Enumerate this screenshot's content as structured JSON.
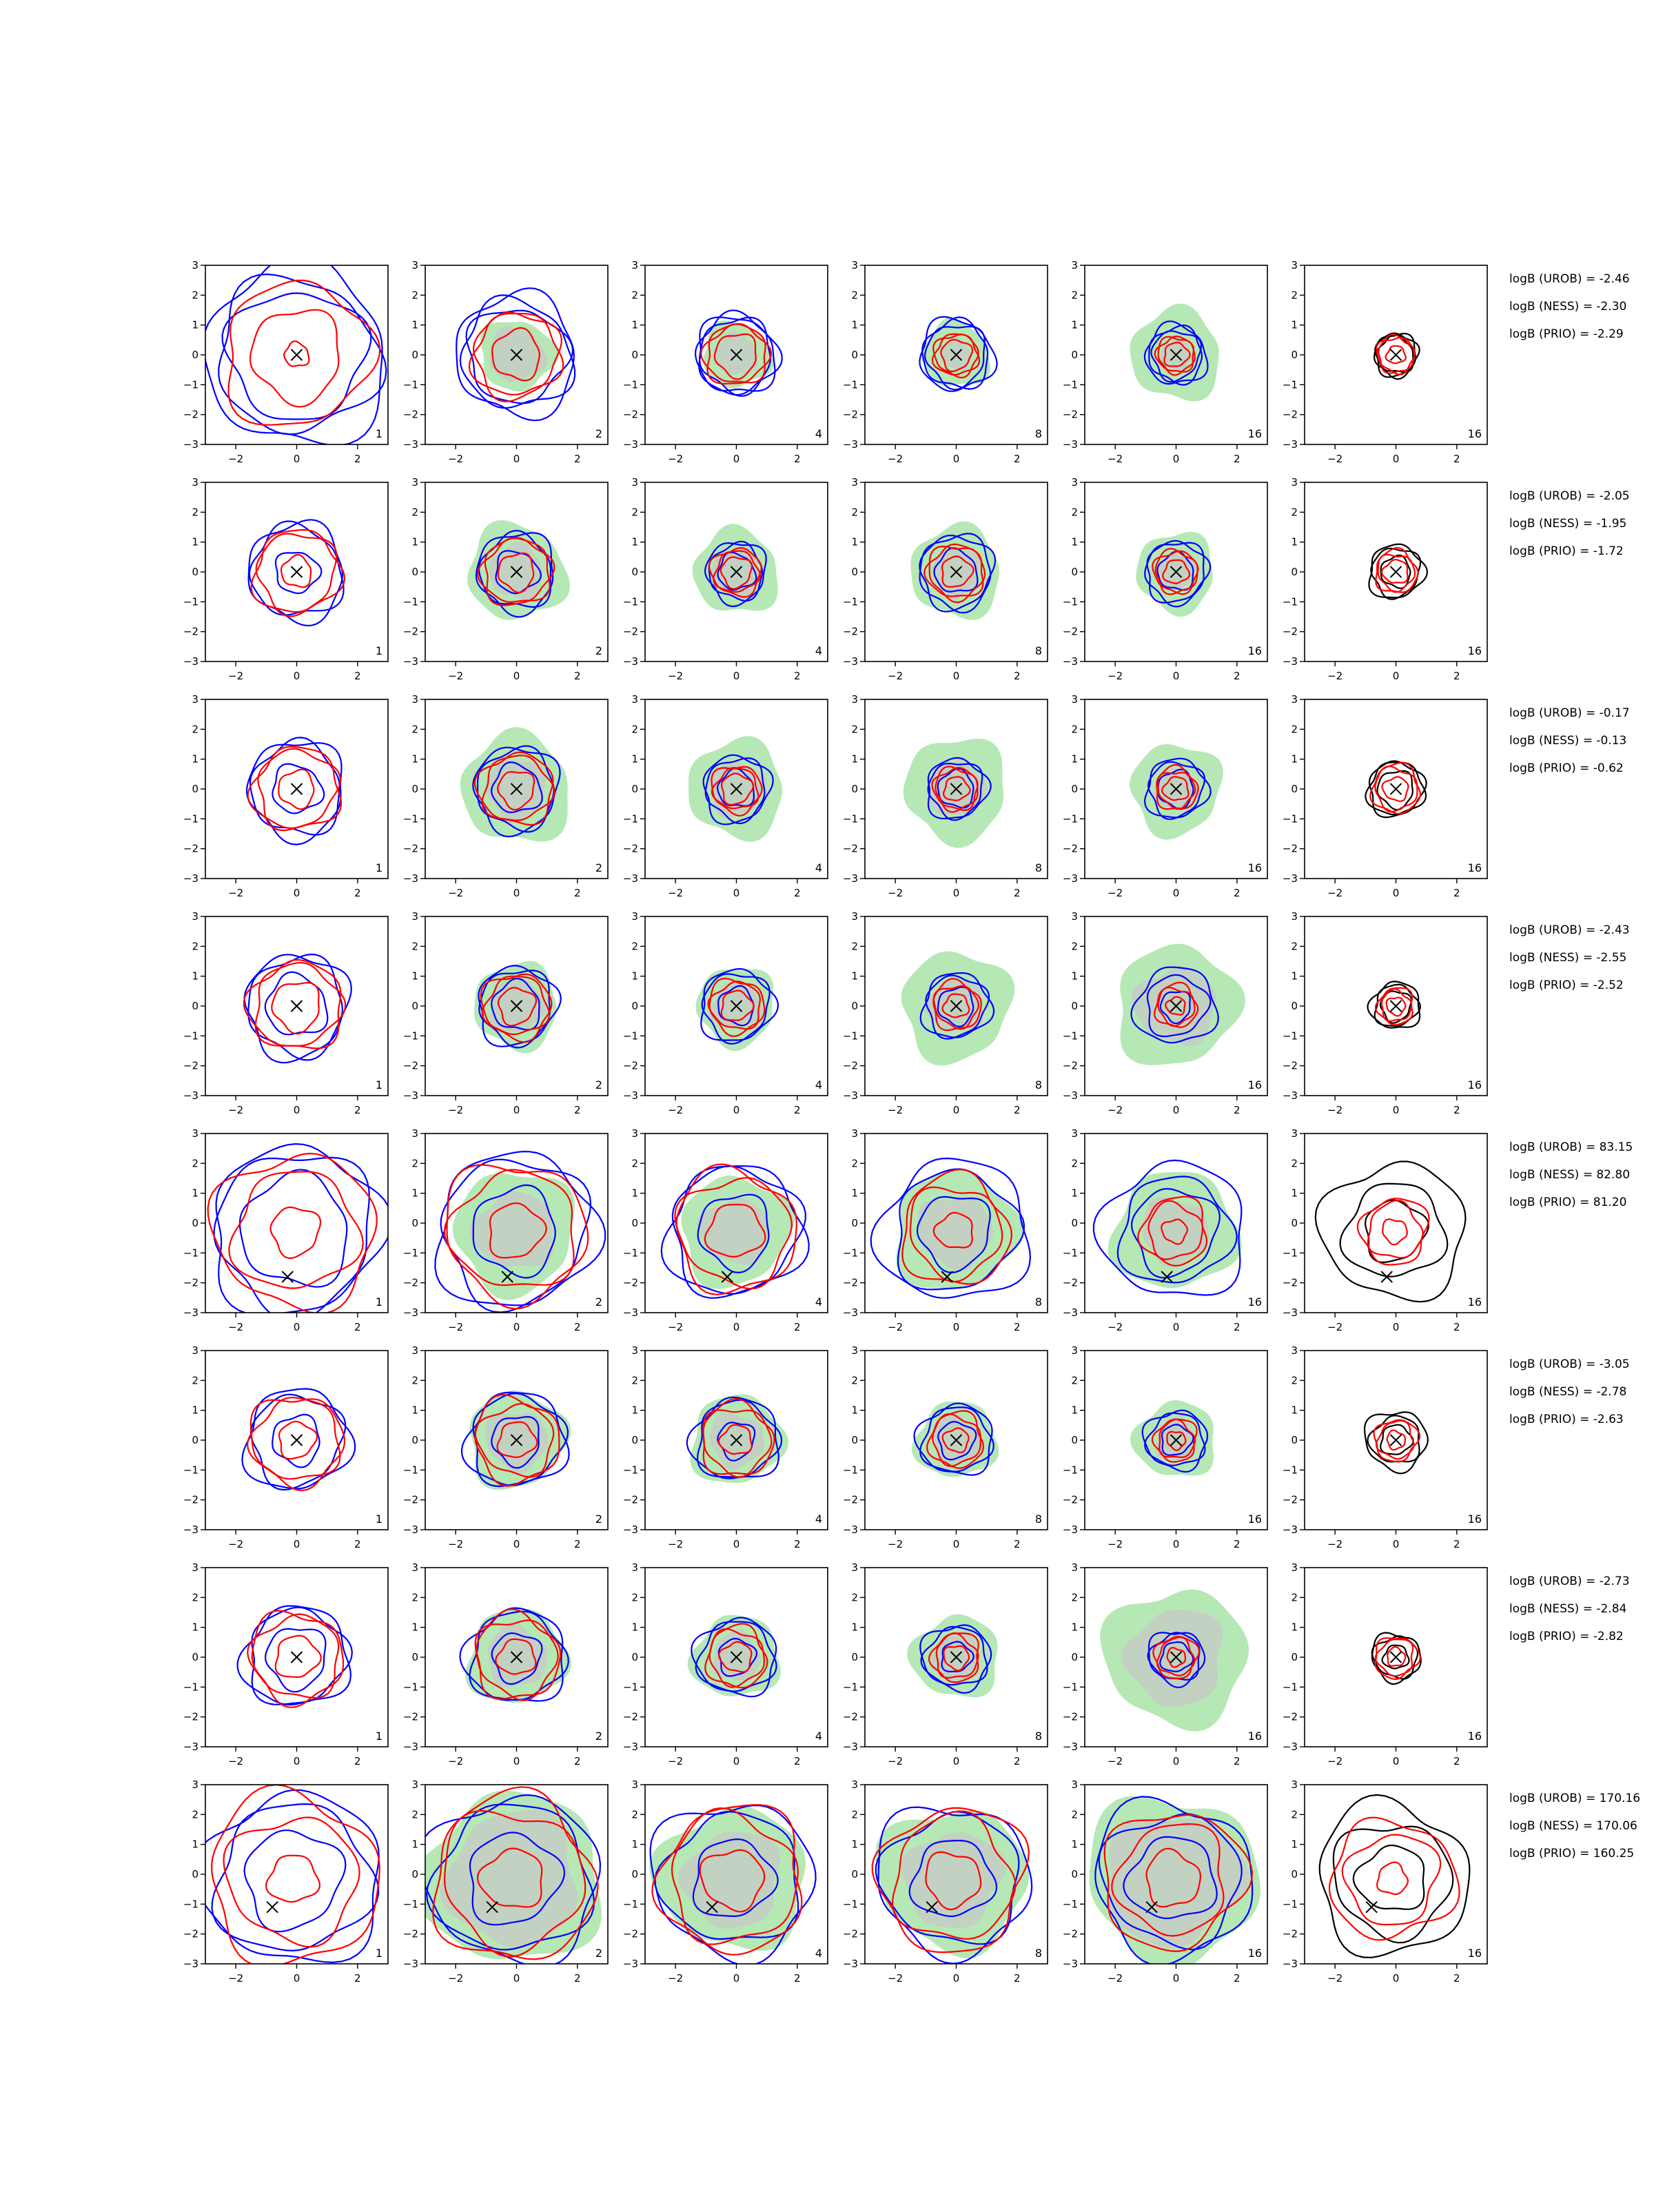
{
  "chart_data": {
    "type": "contour-grid",
    "rows": 8,
    "cols": 6,
    "xlim": [
      -3,
      3
    ],
    "ylim": [
      -3,
      3
    ],
    "xticks": [
      "−2",
      "0",
      "2"
    ],
    "yticks": [
      "−3",
      "−2",
      "−1",
      "0",
      "1",
      "2",
      "3"
    ],
    "column_counts": [
      "1",
      "2",
      "4",
      "8",
      "16",
      "16"
    ],
    "colors": {
      "blue": "#0000ff",
      "red": "#ff0000",
      "black": "#000000",
      "green": "#b5e8b5",
      "grey": "#c8c8c8"
    },
    "rows_data": [
      {
        "marker": [
          0,
          0
        ],
        "logB": [
          "logB (UROB) = -2.46",
          "logB (NESS) = -2.30",
          "logB (PRIO) = -2.29"
        ],
        "blue": [
          [
            2.2,
            2.6,
            3.0
          ],
          [
            1.6,
            1.8,
            2.0
          ],
          [
            1.3,
            1.3,
            1.2
          ],
          [
            1.2,
            1.1,
            1.0
          ],
          [
            1.0,
            0.9,
            0.8
          ],
          [
            0.6,
            0.7,
            0.7
          ]
        ],
        "red": [
          [
            0.4,
            1.5,
            2.4
          ],
          [
            0.8,
            1.4,
            1.4
          ],
          [
            0.7,
            1.0,
            1.0
          ],
          [
            0.5,
            0.7,
            0.7
          ],
          [
            0.4,
            0.6,
            0.6
          ],
          [
            0.3,
            0.6,
            0.6
          ]
        ],
        "green": [
          0,
          1.2,
          1.1,
          1.1,
          1.5,
          0
        ],
        "grey": [
          0,
          0.9,
          0.7,
          0.5,
          0.5,
          0
        ]
      },
      {
        "marker": [
          0,
          0
        ],
        "logB": [
          "logB (UROB) = -2.05",
          "logB (NESS) = -1.95",
          "logB (PRIO) = -1.72"
        ],
        "blue": [
          [
            0.7,
            1.5,
            1.6
          ],
          [
            0.7,
            1.2,
            1.3
          ],
          [
            0.6,
            0.9,
            1.0
          ],
          [
            0.7,
            1.2,
            1.2
          ],
          [
            0.6,
            1.0,
            1.0
          ],
          [
            0.5,
            0.8,
            0.9
          ]
        ],
        "red": [
          [
            0.5,
            1.3,
            1.4
          ],
          [
            0.6,
            1.1,
            1.1
          ],
          [
            0.5,
            0.7,
            0.8
          ],
          [
            0.5,
            0.9,
            0.9
          ],
          [
            0.4,
            0.7,
            0.7
          ],
          [
            0.4,
            0.6,
            0.7
          ]
        ],
        "green": [
          0,
          1.6,
          1.4,
          1.5,
          1.3,
          0
        ],
        "grey": [
          0,
          0.9,
          0.8,
          0.8,
          0.6,
          0
        ]
      },
      {
        "marker": [
          0,
          0
        ],
        "logB": [
          "logB (UROB) = -0.17",
          "logB (NESS) = -0.13",
          "logB (PRIO) = -0.62"
        ],
        "blue": [
          [
            0.8,
            1.5,
            1.6
          ],
          [
            0.8,
            1.3,
            1.4
          ],
          [
            0.6,
            1.0,
            1.1
          ],
          [
            0.6,
            0.9,
            1.0
          ],
          [
            0.6,
            0.9,
            1.0
          ],
          [
            0.6,
            0.9,
            0.9
          ]
        ],
        "red": [
          [
            0.6,
            1.3,
            1.4
          ],
          [
            0.6,
            1.1,
            1.2
          ],
          [
            0.5,
            0.7,
            0.8
          ],
          [
            0.4,
            0.7,
            0.7
          ],
          [
            0.4,
            0.6,
            0.7
          ],
          [
            0.4,
            0.7,
            0.8
          ]
        ],
        "green": [
          0,
          1.8,
          1.6,
          1.7,
          1.5,
          0
        ],
        "grey": [
          0,
          1.0,
          0.9,
          0.9,
          0.7,
          0
        ]
      },
      {
        "marker": [
          0,
          0
        ],
        "logB": [
          "logB (UROB) = -2.43",
          "logB (NESS) = -2.55",
          "logB (PRIO) = -2.52"
        ],
        "blue": [
          [
            1.0,
            1.6,
            1.7
          ],
          [
            0.8,
            1.2,
            1.3
          ],
          [
            0.6,
            1.1,
            1.2
          ],
          [
            0.6,
            1.0,
            1.1
          ],
          [
            0.5,
            1.0,
            1.3
          ],
          [
            0.5,
            0.7,
            0.8
          ]
        ],
        "red": [
          [
            0.8,
            1.4,
            1.5
          ],
          [
            0.6,
            1.0,
            1.1
          ],
          [
            0.5,
            0.8,
            0.9
          ],
          [
            0.4,
            0.7,
            0.8
          ],
          [
            0.3,
            0.6,
            0.7
          ],
          [
            0.3,
            0.5,
            0.6
          ]
        ],
        "green": [
          0,
          1.4,
          1.3,
          1.8,
          2.0,
          0
        ],
        "grey": [
          0,
          0.9,
          0.8,
          0.9,
          1.3,
          0
        ]
      },
      {
        "marker": [
          -0.3,
          -1.8
        ],
        "logB": [
          "logB (UROB) = 83.15",
          "logB (NESS) = 82.80",
          "logB (PRIO) = 81.20"
        ],
        "blue": [
          [
            1.8,
            2.6,
            2.8
          ],
          [
            1.4,
            2.4,
            2.6
          ],
          [
            1.2,
            2.1,
            2.2
          ],
          [
            1.2,
            2.0,
            2.4
          ],
          [
            1.4,
            1.8,
            2.3
          ],
          [
            1.0,
            1.6,
            2.3
          ]
        ],
        "red": [
          [
            0.8,
            2.0,
            2.6
          ],
          [
            0.9,
            2.0,
            2.3
          ],
          [
            0.9,
            1.8,
            2.0
          ],
          [
            0.6,
            1.5,
            1.8
          ],
          [
            0.4,
            0.9,
            1.1
          ],
          [
            0.4,
            0.9,
            1.1
          ]
        ],
        "green": [
          0,
          2.0,
          1.8,
          2.0,
          2.0,
          0
        ],
        "grey": [
          0,
          1.3,
          1.1,
          1.2,
          1.1,
          0
        ]
      },
      {
        "marker": [
          0,
          0
        ],
        "logB": [
          "logB (UROB) = -3.05",
          "logB (NESS) = -2.78",
          "logB (PRIO) = -2.63"
        ],
        "blue": [
          [
            0.8,
            1.5,
            1.7
          ],
          [
            0.8,
            1.5,
            1.6
          ],
          [
            0.6,
            1.3,
            1.4
          ],
          [
            0.6,
            1.1,
            1.2
          ],
          [
            0.5,
            0.9,
            1.0
          ],
          [
            0.5,
            0.8,
            1.0
          ]
        ],
        "red": [
          [
            0.6,
            1.4,
            1.5
          ],
          [
            0.6,
            1.2,
            1.4
          ],
          [
            0.5,
            1.1,
            1.2
          ],
          [
            0.4,
            0.8,
            0.9
          ],
          [
            0.3,
            0.6,
            0.7
          ],
          [
            0.3,
            0.6,
            0.7
          ]
        ],
        "green": [
          0,
          1.6,
          1.5,
          1.3,
          1.3,
          0
        ],
        "grey": [
          0,
          1.0,
          0.9,
          0.8,
          0.7,
          0
        ]
      },
      {
        "marker": [
          0,
          0
        ],
        "logB": [
          "logB (UROB) = -2.73",
          "logB (NESS) = -2.84",
          "logB (PRIO) = -2.82"
        ],
        "blue": [
          [
            1.0,
            1.6,
            1.7
          ],
          [
            0.8,
            1.5,
            1.6
          ],
          [
            0.6,
            1.2,
            1.3
          ],
          [
            0.5,
            1.0,
            1.1
          ],
          [
            0.5,
            0.8,
            0.9
          ],
          [
            0.4,
            0.7,
            0.8
          ]
        ],
        "red": [
          [
            0.7,
            1.4,
            1.5
          ],
          [
            0.6,
            1.3,
            1.4
          ],
          [
            0.5,
            0.9,
            1.0
          ],
          [
            0.4,
            0.7,
            0.8
          ],
          [
            0.3,
            0.6,
            0.7
          ],
          [
            0.3,
            0.6,
            0.7
          ]
        ],
        "green": [
          0,
          1.6,
          1.4,
          1.4,
          2.3,
          0
        ],
        "grey": [
          0,
          1.0,
          0.8,
          0.8,
          1.6,
          0
        ]
      },
      {
        "marker": [
          -0.8,
          -1.1
        ],
        "logB": [
          "logB (UROB) = 170.16",
          "logB (NESS) = 170.06",
          "logB (PRIO) = 160.25"
        ],
        "blue": [
          [
            1.6,
            2.5,
            2.9
          ],
          [
            1.5,
            2.5,
            2.8
          ],
          [
            1.3,
            2.2,
            2.6
          ],
          [
            1.3,
            2.2,
            2.5
          ],
          [
            1.4,
            2.2,
            2.6
          ],
          [
            1.1,
            1.9,
            2.5
          ]
        ],
        "red": [
          [
            0.8,
            2.1,
            2.8
          ],
          [
            1.0,
            2.3,
            2.7
          ],
          [
            1.0,
            2.1,
            2.4
          ],
          [
            0.9,
            2.0,
            2.4
          ],
          [
            0.9,
            1.8,
            2.3
          ],
          [
            0.5,
            1.5,
            2.0
          ]
        ],
        "green": [
          0,
          2.9,
          2.4,
          2.4,
          2.8,
          0
        ],
        "grey": [
          0,
          2.2,
          1.6,
          1.6,
          2.2,
          0
        ]
      }
    ]
  }
}
